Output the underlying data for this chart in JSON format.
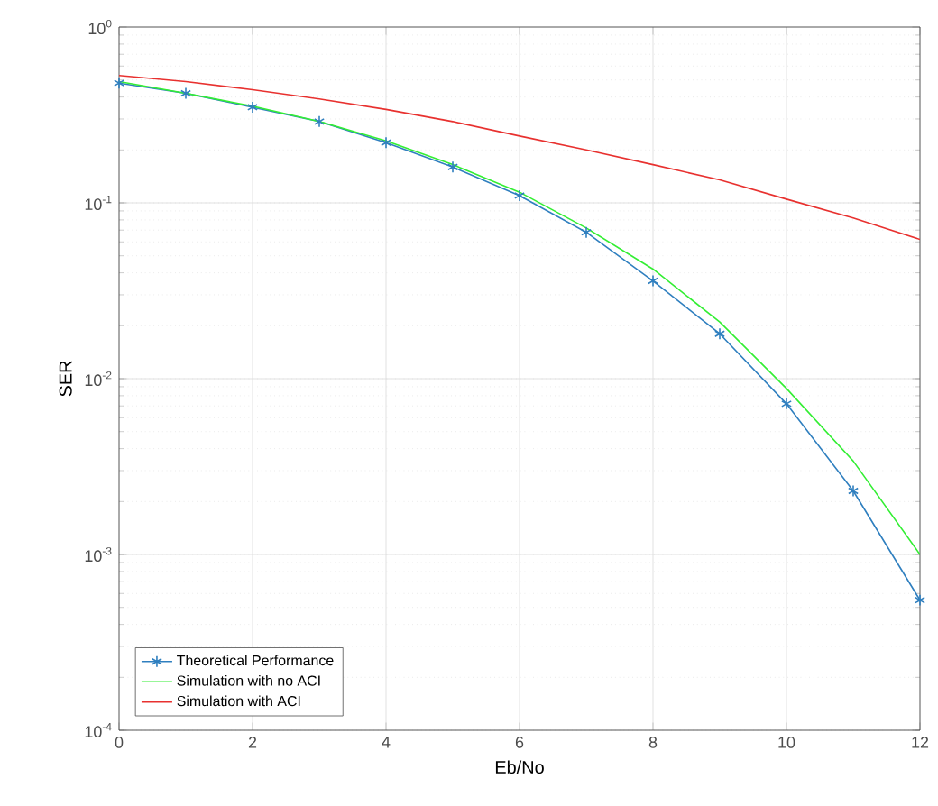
{
  "chart_data": {
    "type": "line",
    "xlabel": "Eb/No",
    "ylabel": "SER",
    "log": "y",
    "grid": true,
    "legend": "bottom left",
    "x": [
      0,
      1,
      2,
      3,
      4,
      5,
      6,
      7,
      8,
      9,
      10,
      11,
      12
    ],
    "xlim": [
      0,
      12
    ],
    "xticks": [
      0,
      2,
      4,
      6,
      8,
      10,
      12
    ],
    "ylim": [
      0.0001,
      1
    ],
    "yticks": [
      {
        "value": 0.0001,
        "label": "10$^{-4}$"
      },
      {
        "value": 0.001,
        "label": "10$^{-3}$"
      },
      {
        "value": 0.01,
        "label": "10$^{-2}$"
      },
      {
        "value": 0.1,
        "label": "10$^{-1}$"
      },
      {
        "value": 1,
        "label": "10$^{0}$"
      }
    ],
    "series": [
      {
        "name": "Theoretical Performance",
        "color": "#2f7fbf",
        "marker": "cross",
        "values": [
          0.48,
          0.42,
          0.35,
          0.29,
          0.22,
          0.16,
          0.11,
          0.068,
          0.036,
          0.018,
          0.0072,
          0.0023,
          0.00055
        ]
      },
      {
        "name": "Simulation with no ACI",
        "color": "#33ee33",
        "marker": "none",
        "values": [
          0.49,
          0.42,
          0.355,
          0.29,
          0.225,
          0.165,
          0.115,
          0.072,
          0.042,
          0.021,
          0.0088,
          0.0034,
          0.001
        ]
      },
      {
        "name": "Simulation with ACI",
        "color": "#e8312f",
        "marker": "none",
        "values": [
          0.53,
          0.49,
          0.44,
          0.39,
          0.34,
          0.29,
          0.24,
          0.2,
          0.165,
          0.135,
          0.105,
          0.082,
          0.062
        ]
      }
    ]
  }
}
